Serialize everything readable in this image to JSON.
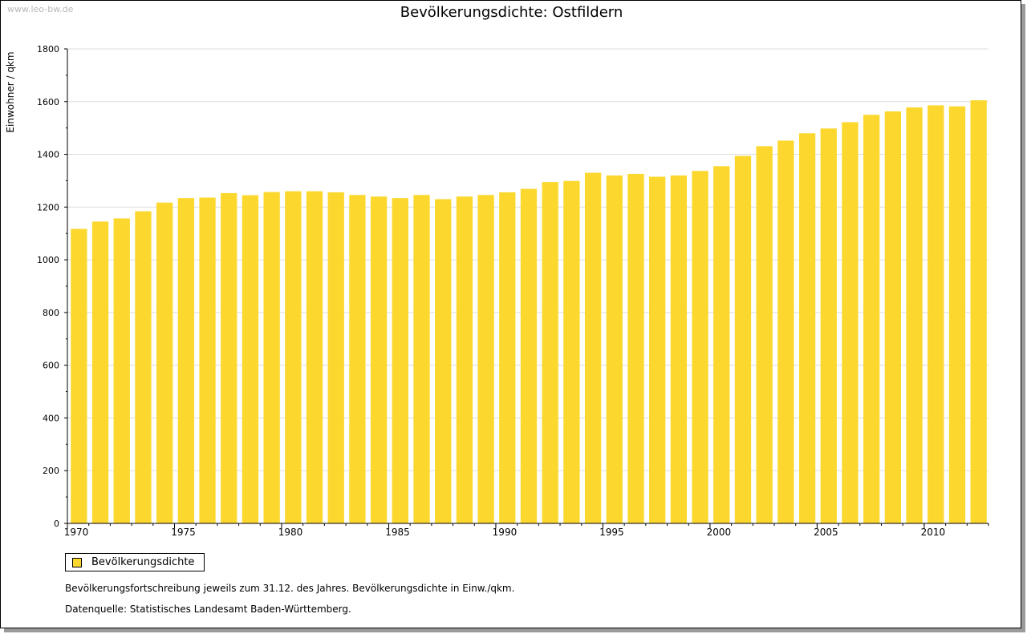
{
  "watermark": "www.leo-bw.de",
  "title": "Bevölkerungsdichte: Ostfildern",
  "legend": {
    "label": "Bevölkerungsdichte"
  },
  "notes": {
    "line1": "Bevölkerungsfortschreibung jeweils zum 31.12. des Jahres. Bevölkerungsdichte in Einw./qkm.",
    "line2": "Datenquelle: Statistisches Landesamt Baden-Württemberg."
  },
  "colors": {
    "bar": "#fcd82e",
    "grid": "#dcdcdc",
    "axis": "#000000"
  },
  "chart_data": {
    "type": "bar",
    "title": "Bevölkerungsdichte: Ostfildern",
    "ylabel": "Einwohner / qkm",
    "xlabel": "",
    "ylim": [
      0,
      1800
    ],
    "yticks": [
      0,
      200,
      400,
      600,
      800,
      1000,
      1200,
      1400,
      1600,
      1800
    ],
    "xtick_labels": [
      "1970",
      "1975",
      "1980",
      "1985",
      "1990",
      "1995",
      "2000",
      "2005",
      "2010"
    ],
    "grid": true,
    "legend_position": "bottom-left",
    "categories": [
      1970,
      1971,
      1972,
      1973,
      1974,
      1975,
      1976,
      1977,
      1978,
      1979,
      1980,
      1981,
      1982,
      1983,
      1984,
      1985,
      1986,
      1987,
      1988,
      1989,
      1990,
      1991,
      1992,
      1993,
      1994,
      1995,
      1996,
      1997,
      1998,
      1999,
      2000,
      2001,
      2002,
      2003,
      2004,
      2005,
      2006,
      2007,
      2008,
      2009,
      2010,
      2011,
      2012
    ],
    "series": [
      {
        "name": "Bevölkerungsdichte",
        "values": [
          1117,
          1145,
          1157,
          1184,
          1217,
          1234,
          1236,
          1253,
          1245,
          1257,
          1260,
          1260,
          1256,
          1246,
          1240,
          1234,
          1246,
          1230,
          1240,
          1246,
          1256,
          1269,
          1295,
          1299,
          1330,
          1320,
          1326,
          1315,
          1320,
          1337,
          1355,
          1394,
          1431,
          1452,
          1480,
          1498,
          1522,
          1550,
          1563,
          1578,
          1586,
          1582,
          1605
        ]
      }
    ]
  }
}
